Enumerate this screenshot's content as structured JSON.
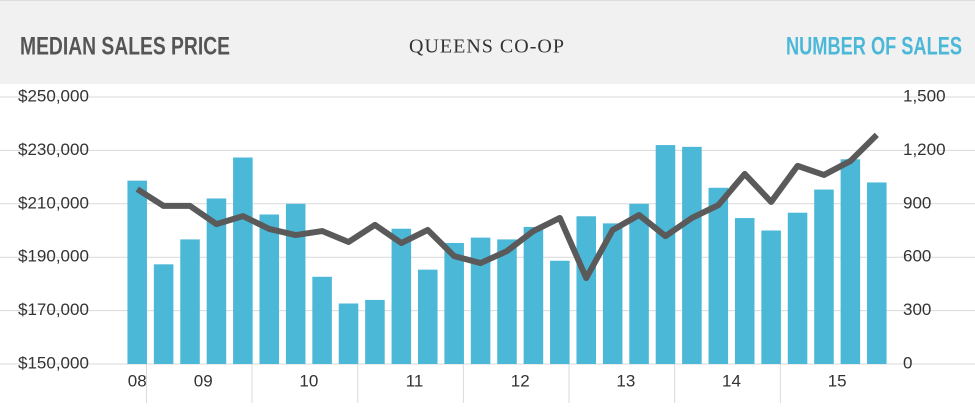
{
  "chart_data": {
    "type": "bar-line",
    "title": "QUEENS CO-OP",
    "y_axis_label": "MEDIAN SALES PRICE",
    "y2_axis_label": "NUMBER OF SALES",
    "categories": [
      "08",
      "09",
      null,
      null,
      null,
      "10",
      null,
      null,
      null,
      "11",
      null,
      null,
      null,
      "12",
      null,
      null,
      null,
      "13",
      null,
      null,
      null,
      "14",
      null,
      null,
      null,
      "15",
      null,
      null,
      null
    ],
    "ylim": [
      150000,
      250000
    ],
    "yticks": [
      {
        "value": 150000,
        "label": "$150,000"
      },
      {
        "value": 170000,
        "label": "$170,000"
      },
      {
        "value": 190000,
        "label": "$190,000"
      },
      {
        "value": 210000,
        "label": "$210,000"
      },
      {
        "value": 230000,
        "label": "$230,000"
      },
      {
        "value": 250000,
        "label": "$250,000"
      }
    ],
    "y2lim": [
      0,
      1500
    ],
    "y2ticks": [
      0,
      300,
      600,
      900,
      {
        "value": 1200,
        "label": "1,200"
      },
      {
        "value": 1500,
        "label": "1,500"
      }
    ],
    "grid": true,
    "series": [
      {
        "name": "NUMBER OF SALES",
        "type": "bar",
        "axis": "y2",
        "color": "#4bb8d8",
        "values": [
          1030,
          560,
          700,
          930,
          1160,
          840,
          900,
          490,
          340,
          360,
          760,
          530,
          680,
          710,
          700,
          770,
          580,
          830,
          790,
          900,
          1230,
          1220,
          990,
          820,
          750,
          850,
          980,
          1150,
          1020
        ]
      },
      {
        "name": "MEDIAN SALES PRICE",
        "type": "line",
        "axis": "y",
        "color": "#5a5a5a",
        "values": [
          215500,
          209200,
          209200,
          202400,
          205400,
          200600,
          198300,
          199800,
          195700,
          202100,
          195300,
          200200,
          190400,
          187800,
          192300,
          199800,
          204700,
          182200,
          200200,
          205800,
          197900,
          204700,
          209500,
          221200,
          210700,
          224200,
          220800,
          226000,
          235800
        ]
      }
    ]
  }
}
